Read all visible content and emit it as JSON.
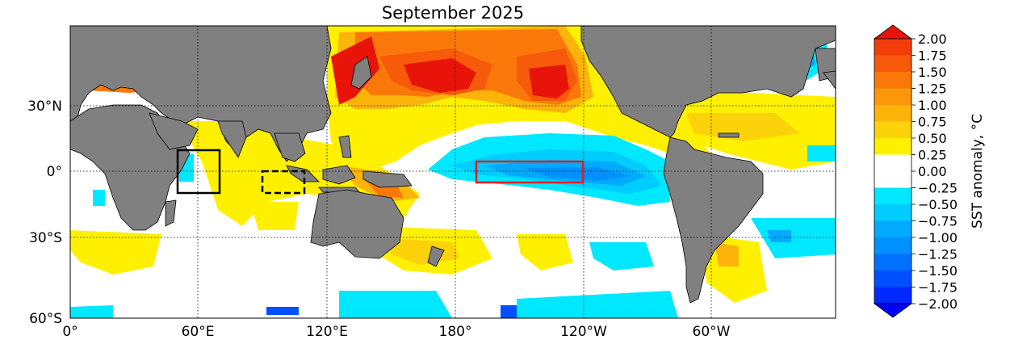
{
  "title": "September 2025",
  "map": {
    "lat_labels": [
      "30°N",
      "0°",
      "30°S",
      "60°S"
    ],
    "lon_labels": [
      "0°",
      "60°E",
      "120°E",
      "180°",
      "120°W",
      "60°W"
    ],
    "boxes": [
      {
        "name": "western-indian-ocean-box",
        "style": "solid",
        "color": "#000000"
      },
      {
        "name": "eastern-indian-ocean-box",
        "style": "dashed",
        "color": "#000000"
      },
      {
        "name": "nino34-box",
        "style": "solid",
        "color": "#e0201e"
      }
    ]
  },
  "colorbar": {
    "label": "SST anomaly,  °C",
    "ticks": [
      "2.00",
      "1.75",
      "1.50",
      "1.25",
      "1.00",
      "0.75",
      "0.50",
      "0.25",
      "0.00",
      "−0.25",
      "−0.50",
      "−0.75",
      "−1.00",
      "−1.25",
      "−1.50",
      "−1.75",
      "−2.00"
    ],
    "colors": [
      "#e8140a",
      "#f23c0a",
      "#f65a0a",
      "#fa780a",
      "#fc960a",
      "#fcb40a",
      "#fcd20a",
      "#fff000",
      "#ffffff",
      "#ffffff",
      "#00e8ff",
      "#00ccff",
      "#00aaff",
      "#0090ff",
      "#0070ff",
      "#0050ff",
      "#0028ff",
      "#0000ff"
    ]
  }
}
